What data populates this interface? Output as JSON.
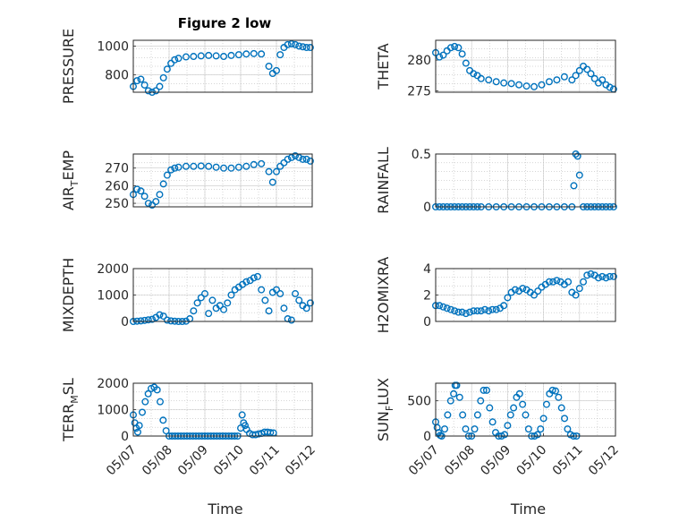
{
  "figure": {
    "title": "Figure 2 low"
  },
  "colors": {
    "marker": "#0072BD",
    "axes": "#262626",
    "grid": "#9a9a9a",
    "background": "#ffffff"
  },
  "chart_data": [
    {
      "id": "pressure",
      "type": "scatter",
      "marker": "circle-open",
      "ylabel": "PRESSURE",
      "xlabel": "",
      "title": "Figure 2 low",
      "xlim": [
        "05/07",
        "05/10 23:00"
      ],
      "ylim": [
        680,
        1040
      ],
      "yticks": [
        800,
        1000
      ],
      "yticklabels": [
        "800",
        "1000"
      ],
      "xticks": [],
      "xticklabels": [],
      "grid": true,
      "x": [
        "05/07 00:00",
        "05/07 02:00",
        "05/07 04:00",
        "05/07 06:00",
        "05/07 08:00",
        "05/07 10:00",
        "05/07 12:00",
        "05/07 14:00",
        "05/07 16:00",
        "05/07 18:00",
        "05/07 20:00",
        "05/07 22:00",
        "05/08 00:00",
        "05/08 04:00",
        "05/08 08:00",
        "05/08 12:00",
        "05/08 16:00",
        "05/08 20:00",
        "05/09 00:00",
        "05/09 04:00",
        "05/09 08:00",
        "05/09 12:00",
        "05/09 16:00",
        "05/09 20:00",
        "05/10 00:00",
        "05/10 02:00",
        "05/10 04:00",
        "05/10 06:00",
        "05/10 08:00",
        "05/10 10:00",
        "05/10 12:00",
        "05/10 14:00",
        "05/10 16:00",
        "05/10 18:00",
        "05/10 20:00",
        "05/10 22:00"
      ],
      "y": [
        720,
        760,
        770,
        730,
        690,
        680,
        690,
        720,
        780,
        840,
        880,
        905,
        915,
        925,
        928,
        932,
        935,
        932,
        928,
        935,
        940,
        945,
        948,
        945,
        860,
        810,
        830,
        940,
        990,
        1010,
        1015,
        1010,
        1000,
        995,
        990,
        990
      ]
    },
    {
      "id": "theta",
      "type": "scatter",
      "marker": "circle-open",
      "ylabel": "THETA",
      "xlabel": "",
      "xlim": [
        "05/07",
        "05/10 23:00"
      ],
      "ylim": [
        274.8,
        283.2
      ],
      "yticks": [
        275,
        280
      ],
      "yticklabels": [
        "275",
        "280"
      ],
      "xticks": [],
      "xticklabels": [],
      "grid": true,
      "x": [
        "05/07 00:00",
        "05/07 02:00",
        "05/07 04:00",
        "05/07 06:00",
        "05/07 08:00",
        "05/07 10:00",
        "05/07 12:00",
        "05/07 14:00",
        "05/07 16:00",
        "05/07 18:00",
        "05/07 20:00",
        "05/07 22:00",
        "05/08 00:00",
        "05/08 04:00",
        "05/08 08:00",
        "05/08 12:00",
        "05/08 16:00",
        "05/08 20:00",
        "05/09 00:00",
        "05/09 04:00",
        "05/09 08:00",
        "05/09 12:00",
        "05/09 16:00",
        "05/09 20:00",
        "05/10 00:00",
        "05/10 02:00",
        "05/10 04:00",
        "05/10 06:00",
        "05/10 08:00",
        "05/10 10:00",
        "05/10 12:00",
        "05/10 14:00",
        "05/10 16:00",
        "05/10 18:00",
        "05/10 20:00",
        "05/10 22:00"
      ],
      "y": [
        281.2,
        280.5,
        280.8,
        281.5,
        282.0,
        282.2,
        282.0,
        281.0,
        279.5,
        278.3,
        277.8,
        277.5,
        277.0,
        276.8,
        276.5,
        276.3,
        276.2,
        276.0,
        275.8,
        275.7,
        276.0,
        276.5,
        276.8,
        277.3,
        276.8,
        277.5,
        278.3,
        279.0,
        278.5,
        277.8,
        277.0,
        276.3,
        276.8,
        276.0,
        275.6,
        275.3
      ]
    },
    {
      "id": "air_temp",
      "type": "scatter",
      "marker": "circle-open",
      "ylabel": "AIR_TEMP",
      "xlabel": "",
      "xlim": [
        "05/07",
        "05/10 23:00"
      ],
      "ylim": [
        248,
        278
      ],
      "yticks": [
        250,
        260,
        270
      ],
      "yticklabels": [
        "250",
        "260",
        "270"
      ],
      "xticks": [],
      "xticklabels": [],
      "grid": true,
      "x": [
        "05/07 00:00",
        "05/07 02:00",
        "05/07 04:00",
        "05/07 06:00",
        "05/07 08:00",
        "05/07 10:00",
        "05/07 12:00",
        "05/07 14:00",
        "05/07 16:00",
        "05/07 18:00",
        "05/07 20:00",
        "05/07 22:00",
        "05/08 00:00",
        "05/08 04:00",
        "05/08 08:00",
        "05/08 12:00",
        "05/08 16:00",
        "05/08 20:00",
        "05/09 00:00",
        "05/09 04:00",
        "05/09 08:00",
        "05/09 12:00",
        "05/09 16:00",
        "05/09 20:00",
        "05/10 00:00",
        "05/10 02:00",
        "05/10 04:00",
        "05/10 06:00",
        "05/10 08:00",
        "05/10 10:00",
        "05/10 12:00",
        "05/10 14:00",
        "05/10 16:00",
        "05/10 18:00",
        "05/10 20:00",
        "05/10 22:00"
      ],
      "y": [
        255,
        258,
        257,
        254,
        250,
        249,
        251,
        255,
        261,
        266,
        269,
        270,
        270.5,
        271,
        271,
        271.2,
        271,
        270.5,
        270,
        270,
        270.5,
        271,
        272,
        272.5,
        268,
        262,
        268,
        271,
        273,
        275,
        276,
        277,
        276,
        275,
        275,
        274
      ]
    },
    {
      "id": "rainfall",
      "type": "scatter",
      "marker": "circle-open",
      "ylabel": "RAINFALL",
      "xlabel": "",
      "xlim": [
        "05/07",
        "05/10 23:00"
      ],
      "ylim": [
        0,
        0.5
      ],
      "yticks": [
        0,
        0.5
      ],
      "yticklabels": [
        "0",
        "0.5"
      ],
      "xticks": [],
      "xticklabels": [],
      "grid": true,
      "x": [
        "05/07 00:00",
        "05/07 02:00",
        "05/07 04:00",
        "05/07 06:00",
        "05/07 08:00",
        "05/07 10:00",
        "05/07 12:00",
        "05/07 14:00",
        "05/07 16:00",
        "05/07 18:00",
        "05/07 20:00",
        "05/07 22:00",
        "05/08 00:00",
        "05/08 04:00",
        "05/08 08:00",
        "05/08 12:00",
        "05/08 16:00",
        "05/08 20:00",
        "05/09 00:00",
        "05/09 04:00",
        "05/09 08:00",
        "05/09 12:00",
        "05/09 16:00",
        "05/09 20:00",
        "05/10 00:00",
        "05/10 01:00",
        "05/10 02:00",
        "05/10 03:00",
        "05/10 04:00",
        "05/10 06:00",
        "05/10 08:00",
        "05/10 10:00",
        "05/10 12:00",
        "05/10 14:00",
        "05/10 16:00",
        "05/10 18:00",
        "05/10 20:00",
        "05/10 22:00"
      ],
      "y": [
        0,
        0,
        0,
        0,
        0,
        0,
        0,
        0,
        0,
        0,
        0,
        0,
        0,
        0,
        0,
        0,
        0,
        0,
        0,
        0,
        0,
        0,
        0,
        0,
        0,
        0.2,
        0.5,
        0.48,
        0.3,
        0,
        0,
        0,
        0,
        0,
        0,
        0,
        0,
        0
      ]
    },
    {
      "id": "mixdepth",
      "type": "scatter",
      "marker": "circle-open",
      "ylabel": "MIXDEPTH",
      "xlabel": "",
      "xlim": [
        "05/07",
        "05/10 23:00"
      ],
      "ylim": [
        0,
        2000
      ],
      "yticks": [
        0,
        1000,
        2000
      ],
      "yticklabels": [
        "0",
        "1000",
        "2000"
      ],
      "xticks": [],
      "xticklabels": [],
      "grid": true,
      "x": [
        "05/07 00:00",
        "05/07 02:00",
        "05/07 04:00",
        "05/07 06:00",
        "05/07 08:00",
        "05/07 10:00",
        "05/07 12:00",
        "05/07 14:00",
        "05/07 16:00",
        "05/07 18:00",
        "05/07 20:00",
        "05/07 22:00",
        "05/08 00:00",
        "05/08 02:00",
        "05/08 04:00",
        "05/08 06:00",
        "05/08 08:00",
        "05/08 10:00",
        "05/08 12:00",
        "05/08 14:00",
        "05/08 16:00",
        "05/08 18:00",
        "05/08 20:00",
        "05/08 22:00",
        "05/09 00:00",
        "05/09 02:00",
        "05/09 04:00",
        "05/09 06:00",
        "05/09 08:00",
        "05/09 10:00",
        "05/09 12:00",
        "05/09 14:00",
        "05/09 16:00",
        "05/09 18:00",
        "05/09 20:00",
        "05/09 22:00",
        "05/10 00:00",
        "05/10 02:00",
        "05/10 04:00",
        "05/10 06:00",
        "05/10 08:00",
        "05/10 10:00",
        "05/10 12:00",
        "05/10 14:00",
        "05/10 16:00",
        "05/10 18:00",
        "05/10 20:00",
        "05/10 22:00"
      ],
      "y": [
        0,
        10,
        20,
        40,
        60,
        80,
        150,
        250,
        200,
        50,
        20,
        10,
        0,
        0,
        10,
        100,
        400,
        700,
        900,
        1050,
        300,
        800,
        500,
        600,
        450,
        700,
        1000,
        1200,
        1300,
        1400,
        1500,
        1550,
        1650,
        1700,
        1200,
        800,
        400,
        1100,
        1200,
        1050,
        500,
        100,
        50,
        1050,
        800,
        600,
        500,
        700
      ]
    },
    {
      "id": "h2omixra",
      "type": "scatter",
      "marker": "circle-open",
      "ylabel": "H2OMIXRA",
      "xlabel": "",
      "xlim": [
        "05/07",
        "05/10 23:00"
      ],
      "ylim": [
        0,
        4
      ],
      "yticks": [
        0,
        2,
        4
      ],
      "yticklabels": [
        "0",
        "2",
        "4"
      ],
      "xticks": [],
      "xticklabels": [],
      "grid": true,
      "x": [
        "05/07 00:00",
        "05/07 02:00",
        "05/07 04:00",
        "05/07 06:00",
        "05/07 08:00",
        "05/07 10:00",
        "05/07 12:00",
        "05/07 14:00",
        "05/07 16:00",
        "05/07 18:00",
        "05/07 20:00",
        "05/07 22:00",
        "05/08 00:00",
        "05/08 02:00",
        "05/08 04:00",
        "05/08 06:00",
        "05/08 08:00",
        "05/08 10:00",
        "05/08 12:00",
        "05/08 14:00",
        "05/08 16:00",
        "05/08 18:00",
        "05/08 20:00",
        "05/08 22:00",
        "05/09 00:00",
        "05/09 02:00",
        "05/09 04:00",
        "05/09 06:00",
        "05/09 08:00",
        "05/09 10:00",
        "05/09 12:00",
        "05/09 14:00",
        "05/09 16:00",
        "05/09 18:00",
        "05/09 20:00",
        "05/09 22:00",
        "05/10 00:00",
        "05/10 02:00",
        "05/10 04:00",
        "05/10 06:00",
        "05/10 08:00",
        "05/10 10:00",
        "05/10 12:00",
        "05/10 14:00",
        "05/10 16:00",
        "05/10 18:00",
        "05/10 20:00",
        "05/10 22:00"
      ],
      "y": [
        1.2,
        1.2,
        1.1,
        1.0,
        0.9,
        0.8,
        0.7,
        0.7,
        0.6,
        0.7,
        0.8,
        0.8,
        0.8,
        0.9,
        0.8,
        0.9,
        0.9,
        1.0,
        1.2,
        1.8,
        2.2,
        2.4,
        2.3,
        2.5,
        2.4,
        2.2,
        2.0,
        2.3,
        2.6,
        2.8,
        3.0,
        3.0,
        3.1,
        3.0,
        2.8,
        3.0,
        2.2,
        2.0,
        2.5,
        3.0,
        3.5,
        3.6,
        3.5,
        3.3,
        3.4,
        3.3,
        3.4,
        3.4
      ]
    },
    {
      "id": "terr_msl",
      "type": "scatter",
      "marker": "circle-open",
      "ylabel": "TERR_MSL",
      "xlabel": "Time",
      "xlim": [
        "05/07",
        "05/12"
      ],
      "ylim": [
        0,
        2000
      ],
      "yticks": [
        0,
        1000,
        2000
      ],
      "yticklabels": [
        "0",
        "1000",
        "2000"
      ],
      "xticks": [
        "05/07",
        "05/08",
        "05/09",
        "05/10",
        "05/11",
        "05/12"
      ],
      "xticklabels": [
        "05/07",
        "05/08",
        "05/09",
        "05/10",
        "05/11",
        "05/12"
      ],
      "grid": true,
      "x": [
        "05/07 00:00",
        "05/07 01:00",
        "05/07 02:00",
        "05/07 03:00",
        "05/07 04:00",
        "05/07 06:00",
        "05/07 08:00",
        "05/07 10:00",
        "05/07 12:00",
        "05/07 14:00",
        "05/07 16:00",
        "05/07 18:00",
        "05/07 20:00",
        "05/07 22:00",
        "05/08 00:00",
        "05/08 02:00",
        "05/08 04:00",
        "05/08 06:00",
        "05/08 08:00",
        "05/08 10:00",
        "05/08 12:00",
        "05/08 14:00",
        "05/08 16:00",
        "05/08 18:00",
        "05/08 20:00",
        "05/08 22:00",
        "05/09 00:00",
        "05/09 02:00",
        "05/09 04:00",
        "05/09 06:00",
        "05/09 08:00",
        "05/09 10:00",
        "05/09 12:00",
        "05/09 14:00",
        "05/09 16:00",
        "05/09 18:00",
        "05/09 20:00",
        "05/09 22:00",
        "05/10 00:00",
        "05/10 01:00",
        "05/10 02:00",
        "05/10 03:00",
        "05/10 04:00",
        "05/10 06:00",
        "05/10 08:00",
        "05/10 10:00",
        "05/10 12:00",
        "05/10 14:00",
        "05/10 16:00",
        "05/10 18:00",
        "05/10 20:00",
        "05/10 22:00"
      ],
      "y": [
        800,
        500,
        300,
        150,
        400,
        900,
        1300,
        1600,
        1800,
        1850,
        1750,
        1300,
        600,
        200,
        0,
        0,
        0,
        0,
        0,
        0,
        0,
        0,
        0,
        0,
        0,
        0,
        0,
        0,
        0,
        0,
        0,
        0,
        0,
        0,
        0,
        0,
        0,
        0,
        300,
        800,
        500,
        400,
        250,
        100,
        50,
        50,
        80,
        100,
        150,
        150,
        130,
        120
      ]
    },
    {
      "id": "sun_flux",
      "type": "scatter",
      "marker": "circle-open",
      "ylabel": "SUN_FLUX",
      "xlabel": "Time",
      "xlim": [
        "05/07",
        "05/12"
      ],
      "ylim": [
        0,
        750
      ],
      "yticks": [
        0,
        500
      ],
      "yticklabels": [
        "0",
        "500"
      ],
      "xticks": [
        "05/07",
        "05/08",
        "05/09",
        "05/10",
        "05/11",
        "05/12"
      ],
      "xticklabels": [
        "05/07",
        "05/08",
        "05/09",
        "05/10",
        "05/11",
        "05/12"
      ],
      "grid": true,
      "x": [
        "05/07 00:00",
        "05/07 01:00",
        "05/07 02:00",
        "05/07 03:00",
        "05/07 04:00",
        "05/07 06:00",
        "05/07 08:00",
        "05/07 10:00",
        "05/07 12:00",
        "05/07 13:00",
        "05/07 14:00",
        "05/07 16:00",
        "05/07 18:00",
        "05/07 20:00",
        "05/07 22:00",
        "05/08 00:00",
        "05/08 02:00",
        "05/08 04:00",
        "05/08 06:00",
        "05/08 08:00",
        "05/08 10:00",
        "05/08 12:00",
        "05/08 14:00",
        "05/08 16:00",
        "05/08 18:00",
        "05/08 20:00",
        "05/08 22:00",
        "05/09 00:00",
        "05/09 02:00",
        "05/09 04:00",
        "05/09 06:00",
        "05/09 08:00",
        "05/09 10:00",
        "05/09 12:00",
        "05/09 14:00",
        "05/09 16:00",
        "05/09 18:00",
        "05/09 20:00",
        "05/09 22:00",
        "05/10 00:00",
        "05/10 02:00",
        "05/10 04:00",
        "05/10 06:00",
        "05/10 08:00",
        "05/10 10:00",
        "05/10 12:00",
        "05/10 14:00",
        "05/10 16:00",
        "05/10 18:00",
        "05/10 20:00",
        "05/10 22:00"
      ],
      "y": [
        200,
        120,
        50,
        10,
        0,
        100,
        300,
        500,
        600,
        720,
        720,
        550,
        300,
        100,
        0,
        0,
        100,
        300,
        500,
        650,
        650,
        400,
        200,
        50,
        0,
        0,
        20,
        150,
        300,
        400,
        550,
        600,
        450,
        300,
        100,
        0,
        0,
        20,
        100,
        250,
        450,
        600,
        650,
        640,
        550,
        400,
        250,
        100,
        20,
        0,
        0
      ]
    }
  ]
}
